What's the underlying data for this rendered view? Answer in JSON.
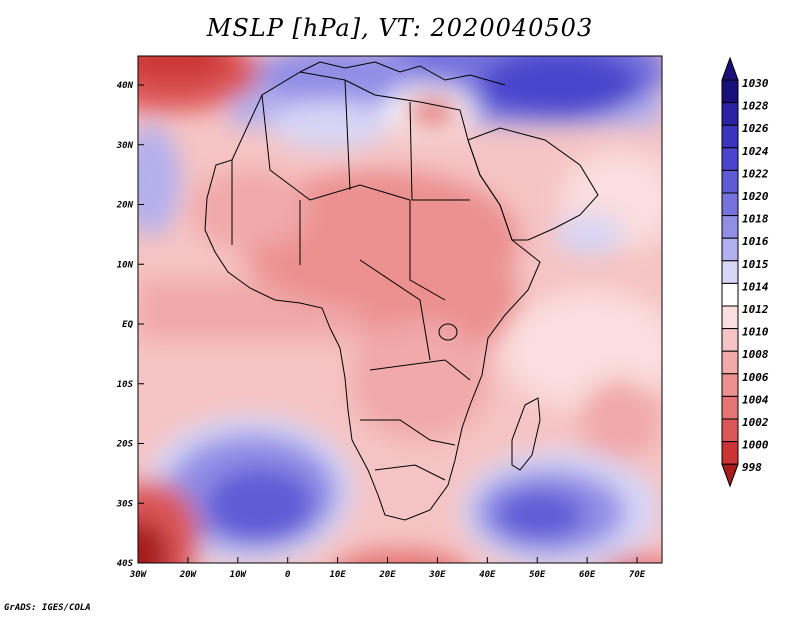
{
  "title": "MSLP [hPa], VT: 2020040503",
  "credit": "GrADS: IGES/COLA",
  "map": {
    "lon_labels": [
      "30W",
      "20W",
      "10W",
      "0",
      "10E",
      "20E",
      "30E",
      "40E",
      "50E",
      "60E",
      "70E"
    ],
    "lat_labels": [
      "40N",
      "30N",
      "20N",
      "10N",
      "EQ",
      "10S",
      "20S",
      "30S",
      "40S"
    ]
  },
  "colorbar": {
    "levels": [
      {
        "label": "1030",
        "color": "#1a0f7a"
      },
      {
        "label": "1028",
        "color": "#2a22a3"
      },
      {
        "label": "1026",
        "color": "#3a34bf"
      },
      {
        "label": "1024",
        "color": "#4a45cc"
      },
      {
        "label": "1022",
        "color": "#5f5bd6"
      },
      {
        "label": "1020",
        "color": "#7773de"
      },
      {
        "label": "1018",
        "color": "#918ee6"
      },
      {
        "label": "1016",
        "color": "#b2b0ef"
      },
      {
        "label": "1015",
        "color": "#d7d6f6"
      },
      {
        "label": "1014",
        "color": "#ffffff"
      },
      {
        "label": "1012",
        "color": "#fbdede"
      },
      {
        "label": "1010",
        "color": "#f6c4c4"
      },
      {
        "label": "1008",
        "color": "#f1a9a9"
      },
      {
        "label": "1006",
        "color": "#ec9090"
      },
      {
        "label": "1004",
        "color": "#e57474"
      },
      {
        "label": "1002",
        "color": "#dc5757"
      },
      {
        "label": "1000",
        "color": "#cc3434"
      },
      {
        "label": "998",
        "color": "#a61c1c"
      }
    ]
  }
}
